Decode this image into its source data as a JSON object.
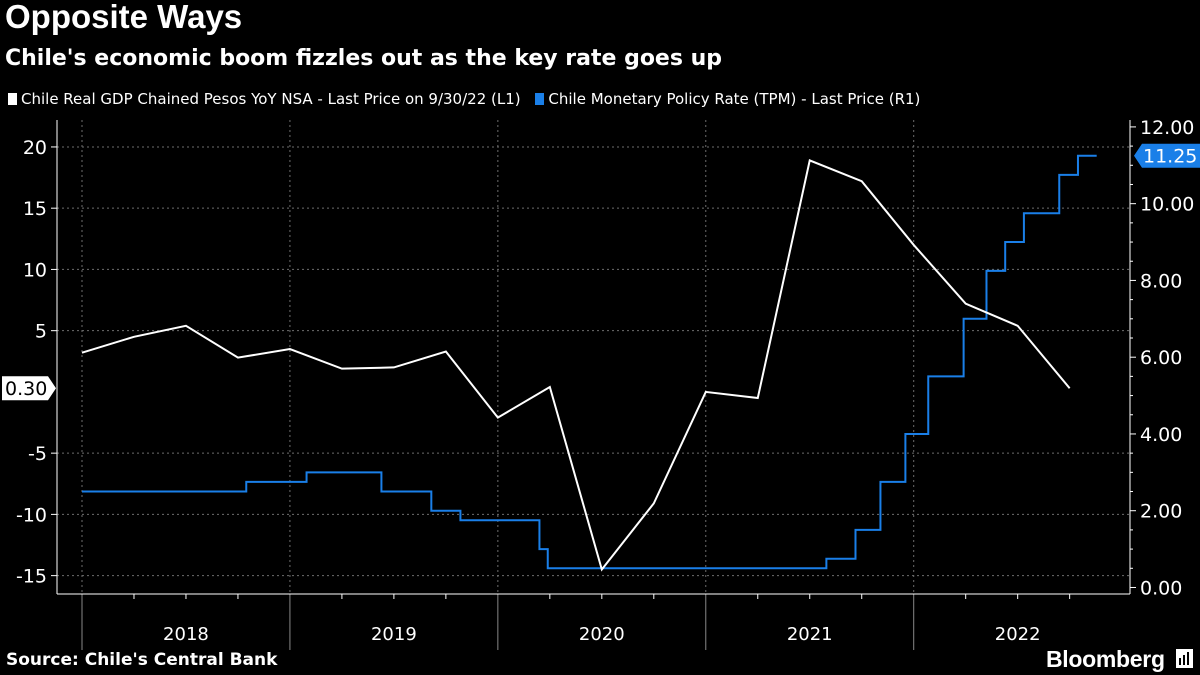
{
  "header": {
    "title": "Opposite Ways",
    "subtitle": "Chile's economic boom fizzles out as the key rate goes up"
  },
  "footer": {
    "source": "Source: Chile's Central Bank",
    "brand": "Bloomberg"
  },
  "colors": {
    "gdp": "#ffffff",
    "rate": "#1a7fe8",
    "background": "#000000",
    "grid": "#6e6e6e"
  },
  "chart_data": {
    "type": "line",
    "title": "Opposite Ways",
    "subtitle": "Chile's economic boom fizzles out as the key rate goes up",
    "x_categories": [
      "2018",
      "2019",
      "2020",
      "2021",
      "2022"
    ],
    "x_range": [
      2018.0,
      2022.92
    ],
    "grid": true,
    "legend_position": "top-left",
    "left_axis": {
      "ticks": [
        20,
        15,
        10,
        5,
        -5,
        -10,
        -15
      ],
      "ylim": [
        -16.5,
        22.2
      ],
      "tick_labels": [
        "20",
        "15",
        "10",
        "5",
        "-5",
        "-10",
        "-15"
      ]
    },
    "right_axis": {
      "ticks": [
        12,
        10,
        8,
        6,
        4,
        2,
        0
      ],
      "ylim": [
        -0.17,
        12.18
      ],
      "tick_labels": [
        "12.00",
        "10.00",
        "8.00",
        "6.00",
        "4.00",
        "2.00",
        "0.00"
      ]
    },
    "series": [
      {
        "name": "Chile Real GDP Chained Pesos YoY NSA - Last Price on 9/30/22 (L1)",
        "axis": "left",
        "last_value_label": "0.30",
        "points": [
          {
            "x": 2018.0,
            "y": 3.2
          },
          {
            "x": 2018.25,
            "y": 4.5
          },
          {
            "x": 2018.5,
            "y": 5.4
          },
          {
            "x": 2018.75,
            "y": 2.8
          },
          {
            "x": 2019.0,
            "y": 3.5
          },
          {
            "x": 2019.25,
            "y": 1.9
          },
          {
            "x": 2019.5,
            "y": 2.0
          },
          {
            "x": 2019.75,
            "y": 3.3
          },
          {
            "x": 2020.0,
            "y": -2.1
          },
          {
            "x": 2020.25,
            "y": 0.4
          },
          {
            "x": 2020.5,
            "y": -14.5
          },
          {
            "x": 2020.75,
            "y": -9.1
          },
          {
            "x": 2021.0,
            "y": 0.0
          },
          {
            "x": 2021.25,
            "y": -0.5
          },
          {
            "x": 2021.5,
            "y": 18.9
          },
          {
            "x": 2021.75,
            "y": 17.2
          },
          {
            "x": 2022.0,
            "y": 12.0
          },
          {
            "x": 2022.25,
            "y": 7.2
          },
          {
            "x": 2022.5,
            "y": 5.4
          },
          {
            "x": 2022.75,
            "y": 0.3
          }
        ]
      },
      {
        "name": "Chile Monetary Policy Rate (TPM) - Last Price (R1)",
        "axis": "right",
        "last_value_label": "11.25",
        "steps": [
          {
            "x": 2018.0,
            "y": 2.5
          },
          {
            "x": 2018.79,
            "y": 2.75
          },
          {
            "x": 2019.08,
            "y": 3.0
          },
          {
            "x": 2019.44,
            "y": 2.5
          },
          {
            "x": 2019.68,
            "y": 2.0
          },
          {
            "x": 2019.82,
            "y": 1.75
          },
          {
            "x": 2020.2,
            "y": 1.0
          },
          {
            "x": 2020.24,
            "y": 0.5
          },
          {
            "x": 2021.58,
            "y": 0.75
          },
          {
            "x": 2021.72,
            "y": 1.5
          },
          {
            "x": 2021.84,
            "y": 2.75
          },
          {
            "x": 2021.96,
            "y": 4.0
          },
          {
            "x": 2022.07,
            "y": 5.5
          },
          {
            "x": 2022.24,
            "y": 7.0
          },
          {
            "x": 2022.35,
            "y": 8.25
          },
          {
            "x": 2022.44,
            "y": 9.0
          },
          {
            "x": 2022.53,
            "y": 9.75
          },
          {
            "x": 2022.7,
            "y": 10.75
          },
          {
            "x": 2022.79,
            "y": 11.25
          },
          {
            "x": 2022.88,
            "y": 11.25
          }
        ]
      }
    ]
  }
}
